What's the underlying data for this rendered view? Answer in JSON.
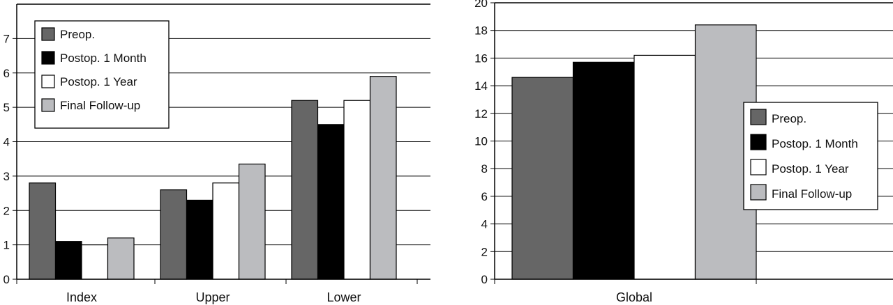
{
  "chart_data": [
    {
      "type": "bar",
      "categories": [
        "Index",
        "Upper",
        "Lower"
      ],
      "series": [
        {
          "name": "Preop.",
          "values": [
            2.8,
            2.6,
            5.2
          ],
          "color": "#666666"
        },
        {
          "name": "Postop. 1 Month",
          "values": [
            1.1,
            2.3,
            4.5
          ],
          "color": "#000000"
        },
        {
          "name": "Postop. 1 Year",
          "values": [
            1.0,
            2.8,
            5.2
          ],
          "color": "#ffffff"
        },
        {
          "name": "Final Follow-up",
          "values": [
            1.2,
            3.35,
            5.9
          ],
          "color": "#bbbcbf"
        }
      ],
      "yticks": [
        "0",
        "1",
        "2",
        "3",
        "4",
        "5",
        "6",
        "7"
      ],
      "ylim": [
        0,
        8
      ],
      "grid": true,
      "legend_position": "top-left"
    },
    {
      "type": "bar",
      "categories": [
        "Global"
      ],
      "series": [
        {
          "name": "Preop.",
          "values": [
            14.6
          ],
          "color": "#666666"
        },
        {
          "name": "Postop. 1 Month",
          "values": [
            15.7
          ],
          "color": "#000000"
        },
        {
          "name": "Postop. 1 Year",
          "values": [
            16.2
          ],
          "color": "#ffffff"
        },
        {
          "name": "Final Follow-up",
          "values": [
            18.4
          ],
          "color": "#bbbcbf"
        }
      ],
      "yticks": [
        "0",
        "2",
        "4",
        "6",
        "8",
        "10",
        "12",
        "14",
        "16",
        "18",
        "20"
      ],
      "ylim": [
        0,
        20
      ],
      "grid": true,
      "legend_position": "right"
    }
  ]
}
